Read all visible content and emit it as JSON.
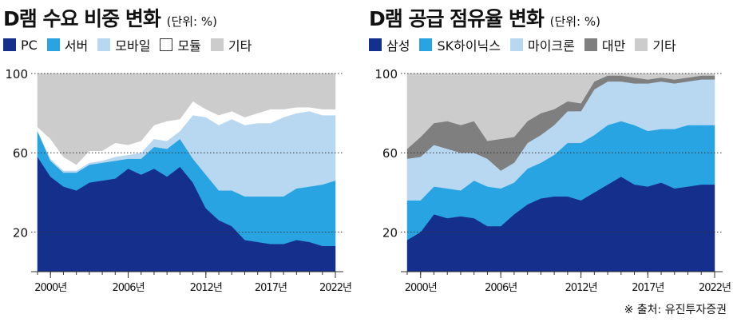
{
  "chart_data": [
    {
      "type": "area",
      "stacked": true,
      "title": "D램 수요 비중 변화",
      "unit": "(단위: %)",
      "x": [
        1999,
        2000,
        2001,
        2002,
        2003,
        2004,
        2005,
        2006,
        2007,
        2008,
        2009,
        2010,
        2011,
        2012,
        2013,
        2014,
        2015,
        2016,
        2017,
        2018,
        2019,
        2020,
        2021,
        2022
      ],
      "x_tick_labels": [
        "2000년",
        "2006년",
        "2012년",
        "2017년",
        "2022년"
      ],
      "x_tick_values": [
        2000,
        2006,
        2012,
        2017,
        2022
      ],
      "y_ticks": [
        20,
        60,
        100
      ],
      "ylim": [
        0,
        100
      ],
      "series": [
        {
          "name": "PC",
          "color": "#15308c",
          "values": [
            58,
            48,
            43,
            41,
            45,
            46,
            47,
            52,
            49,
            52,
            48,
            53,
            45,
            32,
            26,
            23,
            16,
            15,
            14,
            14,
            16,
            15,
            13,
            13
          ]
        },
        {
          "name": "서버",
          "color": "#29a4e2",
          "values": [
            13,
            8,
            7,
            9,
            9,
            9,
            9,
            5,
            8,
            11,
            14,
            14,
            12,
            17,
            15,
            18,
            22,
            23,
            24,
            24,
            26,
            28,
            31,
            33
          ]
        },
        {
          "name": "모바일",
          "color": "#b8d8f1",
          "values": [
            0,
            1,
            1,
            1,
            1,
            1,
            2,
            2,
            3,
            4,
            4,
            4,
            22,
            29,
            33,
            36,
            36,
            37,
            37,
            40,
            38,
            38,
            35,
            33
          ]
        },
        {
          "name": "모듈",
          "color": "#ffffff",
          "border": "#333333",
          "values": [
            2,
            10,
            7,
            3,
            6,
            5,
            7,
            5,
            6,
            7,
            10,
            6,
            7,
            4,
            5,
            4,
            4,
            5,
            7,
            4,
            3,
            2,
            3,
            3
          ]
        },
        {
          "name": "기타",
          "color": "#cccccc",
          "values": [
            27,
            33,
            42,
            46,
            39,
            39,
            35,
            36,
            34,
            26,
            24,
            23,
            14,
            18,
            21,
            19,
            22,
            20,
            18,
            18,
            17,
            17,
            18,
            18
          ]
        }
      ]
    },
    {
      "type": "area",
      "stacked": true,
      "title": "D램 공급 점유율 변화",
      "unit": "(단위: %)",
      "x": [
        1999,
        2000,
        2001,
        2002,
        2003,
        2004,
        2005,
        2006,
        2007,
        2008,
        2009,
        2010,
        2011,
        2012,
        2013,
        2014,
        2015,
        2016,
        2017,
        2018,
        2019,
        2020,
        2021,
        2022
      ],
      "x_tick_labels": [
        "2000년",
        "2006년",
        "2012년",
        "2017년",
        "2022년"
      ],
      "x_tick_values": [
        2000,
        2006,
        2012,
        2017,
        2022
      ],
      "y_ticks": [
        20,
        60,
        100
      ],
      "ylim": [
        0,
        100
      ],
      "series": [
        {
          "name": "삼성",
          "color": "#15308c",
          "values": [
            16,
            20,
            29,
            27,
            28,
            27,
            23,
            23,
            29,
            34,
            37,
            38,
            38,
            36,
            40,
            44,
            48,
            44,
            43,
            45,
            42,
            43,
            44,
            44
          ]
        },
        {
          "name": "SK하이닉스",
          "color": "#29a4e2",
          "values": [
            20,
            16,
            14,
            15,
            13,
            19,
            20,
            19,
            16,
            18,
            18,
            21,
            27,
            29,
            29,
            30,
            28,
            30,
            28,
            27,
            30,
            31,
            30,
            30
          ]
        },
        {
          "name": "마이크론",
          "color": "#b8d8f1",
          "values": [
            21,
            22,
            21,
            20,
            19,
            14,
            14,
            9,
            10,
            13,
            14,
            15,
            16,
            16,
            23,
            22,
            20,
            21,
            24,
            24,
            23,
            22,
            23,
            23
          ]
        },
        {
          "name": "대만",
          "color": "#7f7f7f",
          "values": [
            5,
            10,
            11,
            14,
            14,
            16,
            9,
            16,
            13,
            11,
            11,
            8,
            5,
            4,
            4,
            3,
            3,
            3,
            2,
            2,
            2,
            2,
            2,
            2
          ]
        },
        {
          "name": "기타",
          "color": "#cccccc",
          "values": [
            38,
            32,
            25,
            24,
            26,
            24,
            34,
            33,
            32,
            24,
            20,
            18,
            14,
            15,
            4,
            1,
            1,
            2,
            3,
            2,
            3,
            2,
            1,
            1
          ]
        }
      ]
    }
  ],
  "source": "※ 출처: 유진투자증권"
}
